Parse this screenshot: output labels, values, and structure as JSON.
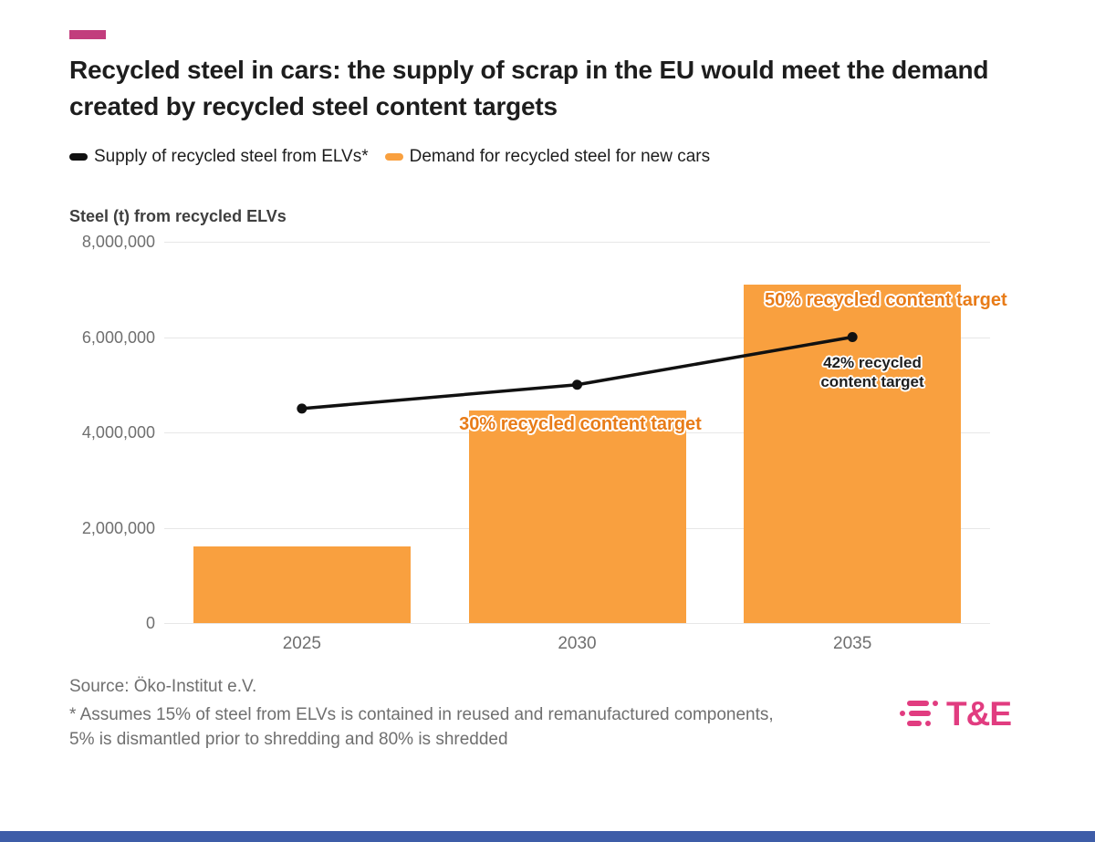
{
  "header": {
    "title": "Recycled steel in cars: the supply of scrap in the EU would meet the demand created by recycled steel content targets",
    "accent_color": "#C23D7D"
  },
  "legend": {
    "items": [
      {
        "label": "Supply of recycled steel from ELVs*",
        "color": "#111111"
      },
      {
        "label": "Demand for recycled steel for new cars",
        "color": "#F9A03F"
      }
    ]
  },
  "chart_data": {
    "type": "bar",
    "title": "",
    "ylabel": "Steel (t) from recycled ELVs",
    "xlabel": "",
    "categories": [
      "2025",
      "2030",
      "2035"
    ],
    "series": [
      {
        "name": "Demand for recycled steel for new cars",
        "kind": "bar",
        "color": "#F9A03F",
        "values": [
          1600000,
          4450000,
          7100000
        ]
      },
      {
        "name": "Supply of recycled steel from ELVs*",
        "kind": "line",
        "color": "#111111",
        "values": [
          4500000,
          5000000,
          6000000
        ]
      }
    ],
    "ylim": [
      0,
      8000000
    ],
    "yticks": [
      {
        "value": 0,
        "label": "0"
      },
      {
        "value": 2000000,
        "label": "2,000,000"
      },
      {
        "value": 4000000,
        "label": "4,000,000"
      },
      {
        "value": 6000000,
        "label": "6,000,000"
      },
      {
        "value": 8000000,
        "label": "8,000,000"
      }
    ],
    "grid": true,
    "legend_position": "top",
    "annotations": [
      {
        "text": "30% recycled content target",
        "color": "#E87B17",
        "x": 456,
        "y": 188,
        "anchor": "middle",
        "size": 20,
        "halo": true
      },
      {
        "text": "50% recycled content target",
        "color": "#E87B17",
        "x": 658,
        "y": 52,
        "anchor": "start",
        "size": 20,
        "halo": true
      },
      {
        "text": "42% recycled\ncontent target",
        "color": "#1f1f1f",
        "x": 776,
        "y": 122,
        "anchor": "middle",
        "size": 17,
        "halo": true
      }
    ]
  },
  "footer": {
    "source": "Source: Öko-Institut e.V.",
    "note": "* Assumes 15% of steel from ELVs is contained in reused and remanufactured components, 5% is dismantled prior to shredding and 80% is shredded",
    "logo_text": "T&E",
    "logo_color": "#E13C80"
  },
  "colors": {
    "bar": "#F9A03F",
    "line": "#111111",
    "annotation_orange": "#E87B17",
    "accent_pink": "#C23D7D",
    "bottom_strip": "#3E5DA8",
    "grid": "#e7e7e7",
    "tick_text": "#6f6f6f"
  }
}
